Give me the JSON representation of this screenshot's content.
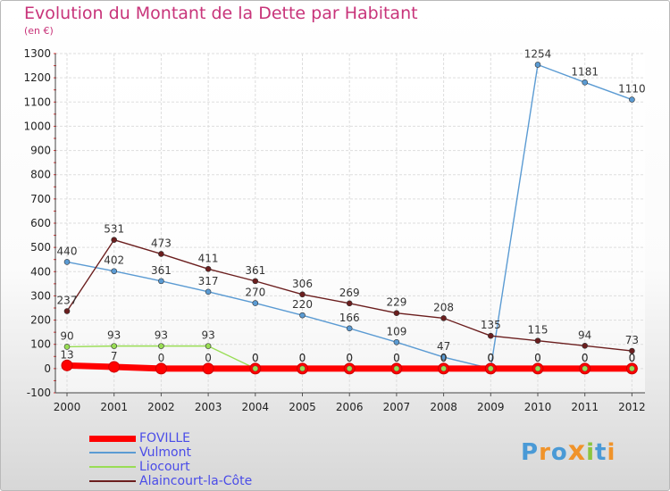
{
  "header": {
    "title": "Evolution du Montant de la Dette par Habitant",
    "subtitle": "(en €)"
  },
  "chart_data": {
    "type": "line",
    "categories": [
      "2000",
      "2001",
      "2002",
      "2003",
      "2004",
      "2005",
      "2006",
      "2007",
      "2008",
      "2009",
      "2010",
      "2011",
      "2012"
    ],
    "ylim": [
      -100,
      1300
    ],
    "yticks": [
      -100,
      0,
      100,
      200,
      300,
      400,
      500,
      600,
      700,
      800,
      900,
      1000,
      1100,
      1200,
      1300
    ],
    "grid": true,
    "legend_position": "bottom-left",
    "series": [
      {
        "name": "FOVILLE",
        "color": "#ff0000",
        "values": [
          13,
          7,
          0,
          0,
          0,
          0,
          0,
          0,
          0,
          0,
          0,
          0,
          0
        ],
        "labels": [
          "13",
          "7",
          "0",
          "0",
          "0",
          "0",
          "0",
          "0",
          "0",
          "0",
          "0",
          "0",
          "0"
        ]
      },
      {
        "name": "Vulmont",
        "color": "#5b9bd3",
        "values": [
          440,
          402,
          361,
          317,
          270,
          220,
          166,
          109,
          47,
          0,
          1254,
          1181,
          1110
        ],
        "labels": [
          "440",
          "402",
          "361",
          "317",
          "270",
          "220",
          "166",
          "109",
          "47",
          "0",
          "1254",
          "1181",
          "1110"
        ]
      },
      {
        "name": "Liocourt",
        "color": "#99dd55",
        "values": [
          90,
          93,
          93,
          93,
          0,
          0,
          0,
          0,
          0,
          0,
          0,
          0,
          0
        ],
        "labels": [
          "90",
          "93",
          "93",
          "93",
          "0",
          "0",
          "0",
          "0",
          "0",
          "0",
          "0",
          "0",
          "0"
        ]
      },
      {
        "name": "Alaincourt-la-Côte",
        "color": "#6b1e1e",
        "values": [
          237,
          531,
          473,
          411,
          361,
          306,
          269,
          229,
          208,
          135,
          115,
          94,
          73
        ],
        "labels": [
          "237",
          "531",
          "473",
          "411",
          "361",
          "306",
          "269",
          "229",
          "208",
          "135",
          "115",
          "94",
          "73"
        ]
      }
    ]
  },
  "logo": {
    "letters": [
      "P",
      "r",
      "o",
      "x",
      "i",
      "t",
      "i"
    ],
    "colors": [
      "#4a9ad6",
      "#f0932a",
      "#4a9ad6",
      "#f0932a",
      "#8bc53f",
      "#4a9ad6",
      "#f0932a"
    ]
  }
}
